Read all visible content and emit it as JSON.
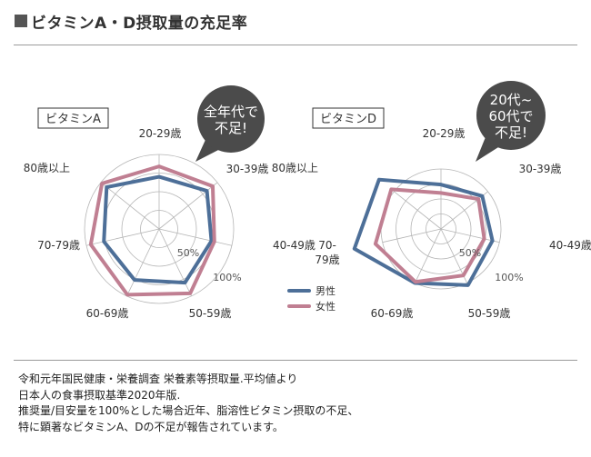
{
  "title": "ビタミンA・D摂取量の充足率",
  "legend": {
    "male": {
      "label": "男性",
      "color": "#4d6f98"
    },
    "female": {
      "label": "女性",
      "color": "#c07f92"
    }
  },
  "scale_labels": {
    "half": "50%",
    "full": "100%"
  },
  "source_lines": [
    "令和元年国民健康・栄養調査 栄養素等摂取量.平均値より",
    "日本人の食事摂取基準2020年版.",
    "推奨量/目安量を100%とした場合近年、脂溶性ビタミン摂取の不足、",
    "特に顕著なビタミンA、Dの不足が報告されています。"
  ],
  "chart_data": [
    {
      "type": "radar",
      "title": "ビタミンA",
      "callout": [
        "全年代で",
        "不足!"
      ],
      "axis_labels": [
        [
          "20-29歳"
        ],
        [
          "30-39歳"
        ],
        [
          "40-49歳"
        ],
        [
          "50-59歳"
        ],
        [
          "60-69歳"
        ],
        [
          "70-79歳"
        ],
        [
          "80歳以上"
        ]
      ],
      "rlim": [
        0,
        120
      ],
      "gridlines": [
        50,
        100
      ],
      "series": [
        {
          "name": "男性",
          "values": [
            70,
            82,
            72,
            80,
            76,
            76,
            90
          ]
        },
        {
          "name": "女性",
          "values": [
            84,
            92,
            76,
            96,
            98,
            94,
            98
          ]
        }
      ]
    },
    {
      "type": "radar",
      "title": "ビタミンD",
      "callout": [
        "20代~",
        "60代で",
        "不足!"
      ],
      "axis_labels": [
        [
          "20-29歳"
        ],
        [
          "30-39歳"
        ],
        [
          "40-49歳"
        ],
        [
          "50-59歳"
        ],
        [
          "60-69歳"
        ],
        [
          "70-",
          "79歳"
        ],
        [
          "80歳以上"
        ]
      ],
      "rlim": [
        0,
        130
      ],
      "gridlines": [
        50,
        100
      ],
      "series": [
        {
          "name": "男性",
          "values": [
            74,
            88,
            88,
            104,
            100,
            148,
            132
          ]
        },
        {
          "name": "女性",
          "values": [
            60,
            80,
            74,
            86,
            98,
            112,
            106
          ]
        }
      ]
    }
  ]
}
